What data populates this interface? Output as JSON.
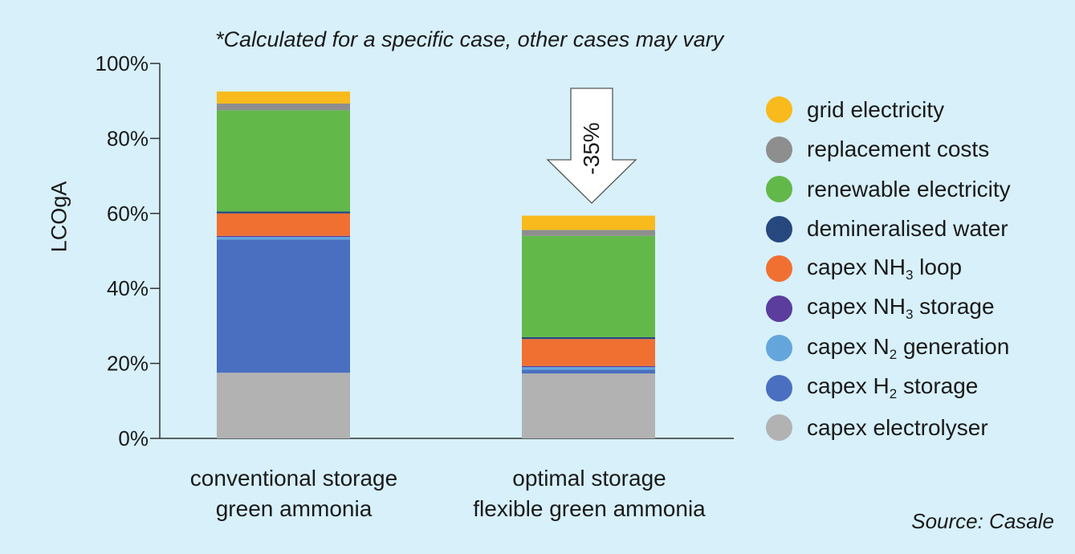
{
  "note": "*Calculated for a specific case, other cases may vary",
  "source": "Source: Casale",
  "arrow_label": "-35%",
  "chart_data": {
    "type": "bar",
    "stacked": true,
    "categories": [
      [
        "conventional storage",
        "green ammonia"
      ],
      [
        "optimal storage",
        "flexible green ammonia"
      ]
    ],
    "ylabel": "LCOgA",
    "ylim": [
      0,
      100
    ],
    "yticks": [
      0,
      20,
      40,
      60,
      80,
      100
    ],
    "ytick_labels": [
      "0%",
      "20%",
      "40%",
      "60%",
      "80%",
      "100%"
    ],
    "legend_position": "right",
    "series": [
      {
        "name": "capex electrolyser",
        "color": "#b2b2b2",
        "values": [
          17.5,
          17.3
        ]
      },
      {
        "name": "capex H",
        "sub": "2",
        "suffix": " storage",
        "color": "#4a6fc0",
        "values": [
          35.5,
          1.0
        ]
      },
      {
        "name": "capex N",
        "sub": "2",
        "suffix": " generation",
        "color": "#64a6dc",
        "values": [
          0.7,
          0.7
        ]
      },
      {
        "name": "capex NH",
        "sub": "3",
        "suffix": " storage",
        "color": "#5b3d9e",
        "values": [
          0.3,
          0.3
        ]
      },
      {
        "name": "capex NH",
        "sub": "3",
        "suffix": " loop",
        "color": "#f07032",
        "values": [
          6.0,
          7.2
        ]
      },
      {
        "name": "demineralised water",
        "color": "#27477f",
        "values": [
          0.5,
          0.5
        ]
      },
      {
        "name": "renewable electricity",
        "color": "#63b84a",
        "values": [
          27.0,
          27.0
        ]
      },
      {
        "name": "replacement costs",
        "color": "#8e8e8e",
        "values": [
          1.8,
          1.6
        ]
      },
      {
        "name": "grid electricity",
        "color": "#f8ba1c",
        "values": [
          3.2,
          3.8
        ]
      }
    ]
  }
}
